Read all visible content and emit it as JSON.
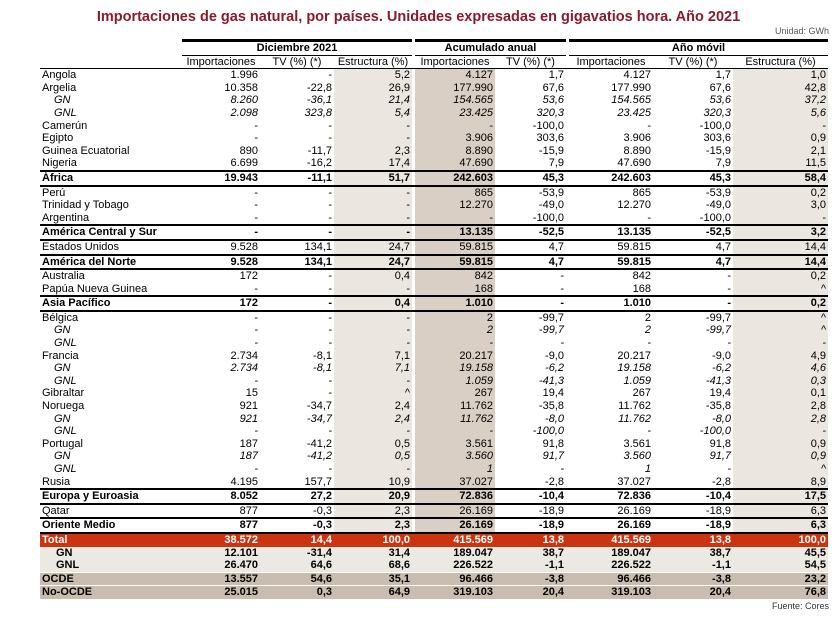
{
  "title": "Importaciones de gas natural, por países. Unidades expresadas en gigavatios hora. Año 2021",
  "unit": "Unidad: GWh",
  "source": "Fuente: Cores",
  "groups": [
    "Diciembre 2021",
    "Acumulado anual",
    "Año móvil"
  ],
  "columns": [
    "Importaciones",
    "TV (%) (*)",
    "Estructura (%)",
    "Importaciones",
    "TV (%) (*)",
    "Importaciones",
    "TV (%) (*)",
    "Estructura (%)"
  ],
  "colors": {
    "title": "#8b1a2b",
    "total_row": "#cc3311",
    "ocde_row": "#c9bdb0",
    "shade_light": "#ebe6e0",
    "shade_dark": "#d9cfc4"
  },
  "rows": [
    {
      "label": "Angola",
      "type": "country",
      "values": [
        "1.996",
        "-",
        "5,2",
        "4.127",
        "1,7",
        "4.127",
        "1,7",
        "1,0"
      ]
    },
    {
      "label": "Argelia",
      "type": "country",
      "values": [
        "10.358",
        "-22,8",
        "26,9",
        "177.990",
        "67,6",
        "177.990",
        "67,6",
        "42,8"
      ]
    },
    {
      "label": "GN",
      "type": "sub",
      "values": [
        "8.260",
        "-36,1",
        "21,4",
        "154.565",
        "53,6",
        "154.565",
        "53,6",
        "37,2"
      ]
    },
    {
      "label": "GNL",
      "type": "sub",
      "values": [
        "2.098",
        "323,8",
        "5,4",
        "23.425",
        "320,3",
        "23.425",
        "320,3",
        "5,6"
      ]
    },
    {
      "label": "Camerún",
      "type": "country",
      "values": [
        "-",
        "-",
        "-",
        "-",
        "-100,0",
        "-",
        "-100,0",
        "-"
      ]
    },
    {
      "label": "Egipto",
      "type": "country",
      "values": [
        "-",
        "-",
        "-",
        "3.906",
        "303,6",
        "3.906",
        "303,6",
        "0,9"
      ]
    },
    {
      "label": "Guinea Ecuatorial",
      "type": "country",
      "values": [
        "890",
        "-11,7",
        "2,3",
        "8.890",
        "-15,9",
        "8.890",
        "-15,9",
        "2,1"
      ]
    },
    {
      "label": "Nigeria",
      "type": "country",
      "values": [
        "6.699",
        "-16,2",
        "17,4",
        "47.690",
        "7,9",
        "47.690",
        "7,9",
        "11,5"
      ]
    },
    {
      "label": "África",
      "type": "region",
      "values": [
        "19.943",
        "-11,1",
        "51,7",
        "242.603",
        "45,3",
        "242.603",
        "45,3",
        "58,4"
      ]
    },
    {
      "label": "Perú",
      "type": "country",
      "values": [
        "-",
        "-",
        "-",
        "865",
        "-53,9",
        "865",
        "-53,9",
        "0,2"
      ]
    },
    {
      "label": "Trinidad y Tobago",
      "type": "country",
      "values": [
        "-",
        "-",
        "-",
        "12.270",
        "-49,0",
        "12.270",
        "-49,0",
        "3,0"
      ]
    },
    {
      "label": "Argentina",
      "type": "country",
      "values": [
        "-",
        "-",
        "-",
        "-",
        "-100,0",
        "-",
        "-100,0",
        "-"
      ]
    },
    {
      "label": "América Central y Sur",
      "type": "region",
      "values": [
        "-",
        "-",
        "-",
        "13.135",
        "-52,5",
        "13.135",
        "-52,5",
        "3,2"
      ]
    },
    {
      "label": "Estados Unidos",
      "type": "country",
      "values": [
        "9.528",
        "134,1",
        "24,7",
        "59.815",
        "4,7",
        "59.815",
        "4,7",
        "14,4"
      ]
    },
    {
      "label": "América del Norte",
      "type": "region",
      "values": [
        "9.528",
        "134,1",
        "24,7",
        "59.815",
        "4,7",
        "59.815",
        "4,7",
        "14,4"
      ]
    },
    {
      "label": "Australia",
      "type": "country",
      "values": [
        "172",
        "-",
        "0,4",
        "842",
        "-",
        "842",
        "-",
        "0,2"
      ]
    },
    {
      "label": "Papúa Nueva Guinea",
      "type": "country",
      "values": [
        "-",
        "-",
        "-",
        "168",
        "-",
        "168",
        "-",
        "^"
      ]
    },
    {
      "label": "Asia Pacífico",
      "type": "region",
      "values": [
        "172",
        "-",
        "0,4",
        "1.010",
        "-",
        "1.010",
        "-",
        "0,2"
      ]
    },
    {
      "label": "Bélgica",
      "type": "country",
      "values": [
        "-",
        "-",
        "-",
        "2",
        "-99,7",
        "2",
        "-99,7",
        "^"
      ]
    },
    {
      "label": "GN",
      "type": "sub",
      "values": [
        "-",
        "-",
        "-",
        "2",
        "-99,7",
        "2",
        "-99,7",
        "^"
      ]
    },
    {
      "label": "GNL",
      "type": "sub",
      "values": [
        "-",
        "-",
        "-",
        "-",
        "-",
        "-",
        "-",
        "-"
      ]
    },
    {
      "label": "Francia",
      "type": "country",
      "values": [
        "2.734",
        "-8,1",
        "7,1",
        "20.217",
        "-9,0",
        "20.217",
        "-9,0",
        "4,9"
      ]
    },
    {
      "label": "GN",
      "type": "sub",
      "values": [
        "2.734",
        "-8,1",
        "7,1",
        "19.158",
        "-6,2",
        "19.158",
        "-6,2",
        "4,6"
      ]
    },
    {
      "label": "GNL",
      "type": "sub",
      "values": [
        "-",
        "-",
        "-",
        "1.059",
        "-41,3",
        "1.059",
        "-41,3",
        "0,3"
      ]
    },
    {
      "label": "Gibraltar",
      "type": "country",
      "values": [
        "15",
        "-",
        "^",
        "267",
        "19,4",
        "267",
        "19,4",
        "0,1"
      ]
    },
    {
      "label": "Noruega",
      "type": "country",
      "values": [
        "921",
        "-34,7",
        "2,4",
        "11.762",
        "-35,8",
        "11.762",
        "-35,8",
        "2,8"
      ]
    },
    {
      "label": "GN",
      "type": "sub",
      "values": [
        "921",
        "-34,7",
        "2,4",
        "11.762",
        "-8,0",
        "11.762",
        "-8,0",
        "2,8"
      ]
    },
    {
      "label": "GNL",
      "type": "sub",
      "values": [
        "-",
        "-",
        "-",
        "-",
        "-100,0",
        "-",
        "-100,0",
        "-"
      ]
    },
    {
      "label": "Portugal",
      "type": "country",
      "values": [
        "187",
        "-41,2",
        "0,5",
        "3.561",
        "91,8",
        "3.561",
        "91,8",
        "0,9"
      ]
    },
    {
      "label": "GN",
      "type": "sub",
      "values": [
        "187",
        "-41,2",
        "0,5",
        "3.560",
        "91,7",
        "3.560",
        "91,7",
        "0,9"
      ]
    },
    {
      "label": "GNL",
      "type": "sub",
      "values": [
        "-",
        "-",
        "-",
        "1",
        "-",
        "1",
        "-",
        "^"
      ]
    },
    {
      "label": "Rusia",
      "type": "country",
      "values": [
        "4.195",
        "157,7",
        "10,9",
        "37.027",
        "-2,8",
        "37.027",
        "-2,8",
        "8,9"
      ]
    },
    {
      "label": "Europa y Euroasia",
      "type": "region",
      "values": [
        "8.052",
        "27,2",
        "20,9",
        "72.836",
        "-10,4",
        "72.836",
        "-10,4",
        "17,5"
      ]
    },
    {
      "label": "Qatar",
      "type": "country",
      "values": [
        "877",
        "-0,3",
        "2,3",
        "26.169",
        "-18,9",
        "26.169",
        "-18,9",
        "6,3"
      ]
    },
    {
      "label": "Oriente Medio",
      "type": "region",
      "values": [
        "877",
        "-0,3",
        "2,3",
        "26.169",
        "-18,9",
        "26.169",
        "-18,9",
        "6,3"
      ]
    },
    {
      "label": "Total",
      "type": "total",
      "values": [
        "38.572",
        "14,4",
        "100,0",
        "415.569",
        "13,8",
        "415.569",
        "13,8",
        "100,0"
      ]
    },
    {
      "label": "GN",
      "type": "totsub",
      "values": [
        "12.101",
        "-31,4",
        "31,4",
        "189.047",
        "38,7",
        "189.047",
        "38,7",
        "45,5"
      ]
    },
    {
      "label": "GNL",
      "type": "totsub",
      "values": [
        "26.470",
        "64,6",
        "68,6",
        "226.522",
        "-1,1",
        "226.522",
        "-1,1",
        "54,5"
      ]
    },
    {
      "label": "OCDE",
      "type": "ocde",
      "values": [
        "13.557",
        "54,6",
        "35,1",
        "96.466",
        "-3,8",
        "96.466",
        "-3,8",
        "23,2"
      ]
    },
    {
      "label": "No-OCDE",
      "type": "ocde",
      "values": [
        "25.015",
        "0,3",
        "64,9",
        "319.103",
        "20,4",
        "319.103",
        "20,4",
        "76,8"
      ]
    }
  ]
}
